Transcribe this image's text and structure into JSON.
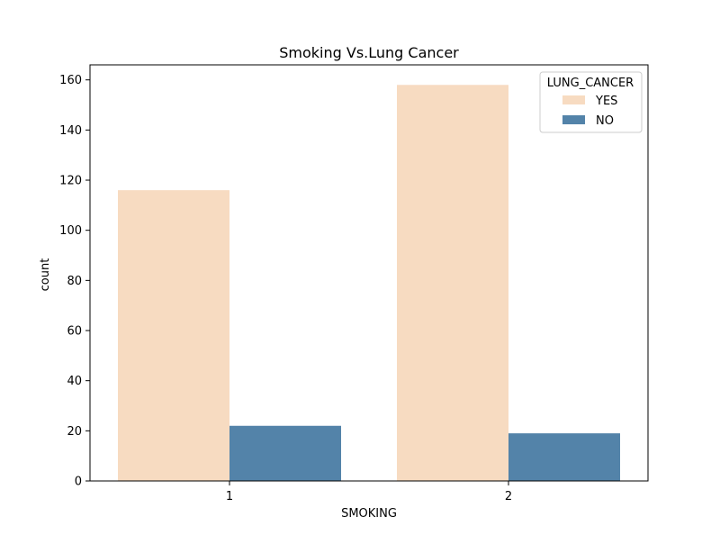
{
  "chart_data": {
    "type": "bar",
    "title": "Smoking Vs.Lung Cancer",
    "xlabel": "SMOKING",
    "ylabel": "count",
    "categories": [
      "1",
      "2"
    ],
    "series": [
      {
        "name": "YES",
        "values": [
          116,
          158
        ],
        "color": "#f7dbc1"
      },
      {
        "name": "NO",
        "values": [
          22,
          19
        ],
        "color": "#5383a9"
      }
    ],
    "ylim": [
      0,
      166
    ],
    "yticks": [
      0,
      20,
      40,
      60,
      80,
      100,
      120,
      140,
      160
    ],
    "legend": {
      "title": "LUNG_CANCER",
      "placement": "top-right"
    },
    "grid": false
  }
}
